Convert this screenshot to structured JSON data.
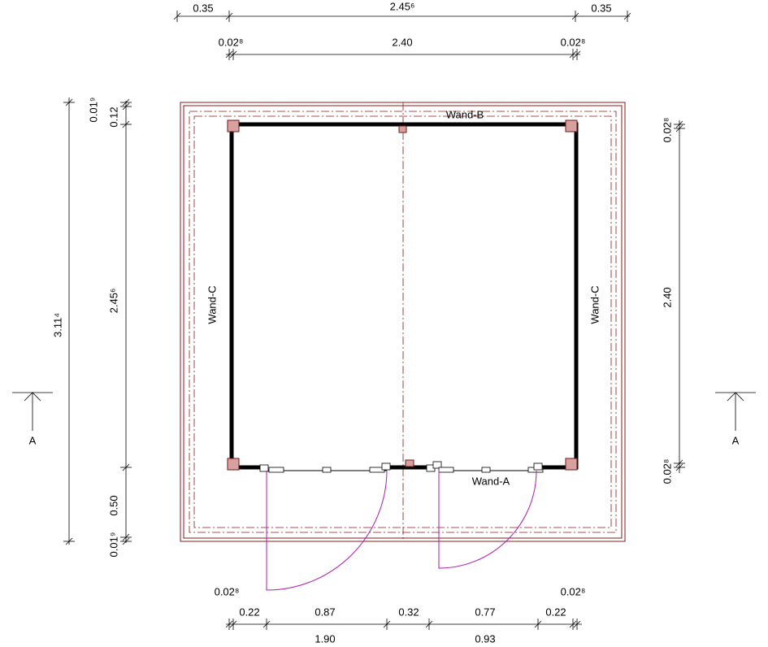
{
  "top_dims": {
    "row1": [
      "0.35",
      "2.45⁶",
      "0.35"
    ],
    "row2": [
      "0.02⁸",
      "2.40",
      "0.02⁸"
    ]
  },
  "left_dims": {
    "outer": "3.11⁴",
    "inner": [
      "0.01⁹",
      "0.12",
      "2.45⁶",
      "0.50",
      "0.01⁹"
    ]
  },
  "right_dims": [
    "0.02⁸",
    "2.40",
    "0.02⁸"
  ],
  "bottom_dims": {
    "row0": [
      "0.02⁸",
      "0.02⁸"
    ],
    "row1": [
      "0.22",
      "0.87",
      "0.32",
      "0.77",
      "0.22"
    ],
    "row2": [
      "1.90",
      "0.93"
    ]
  },
  "walls": {
    "top": "Wand-B",
    "left": "Wand-C",
    "right": "Wand-C",
    "bottom": "Wand-A"
  },
  "section_marks": [
    "A",
    "A"
  ]
}
